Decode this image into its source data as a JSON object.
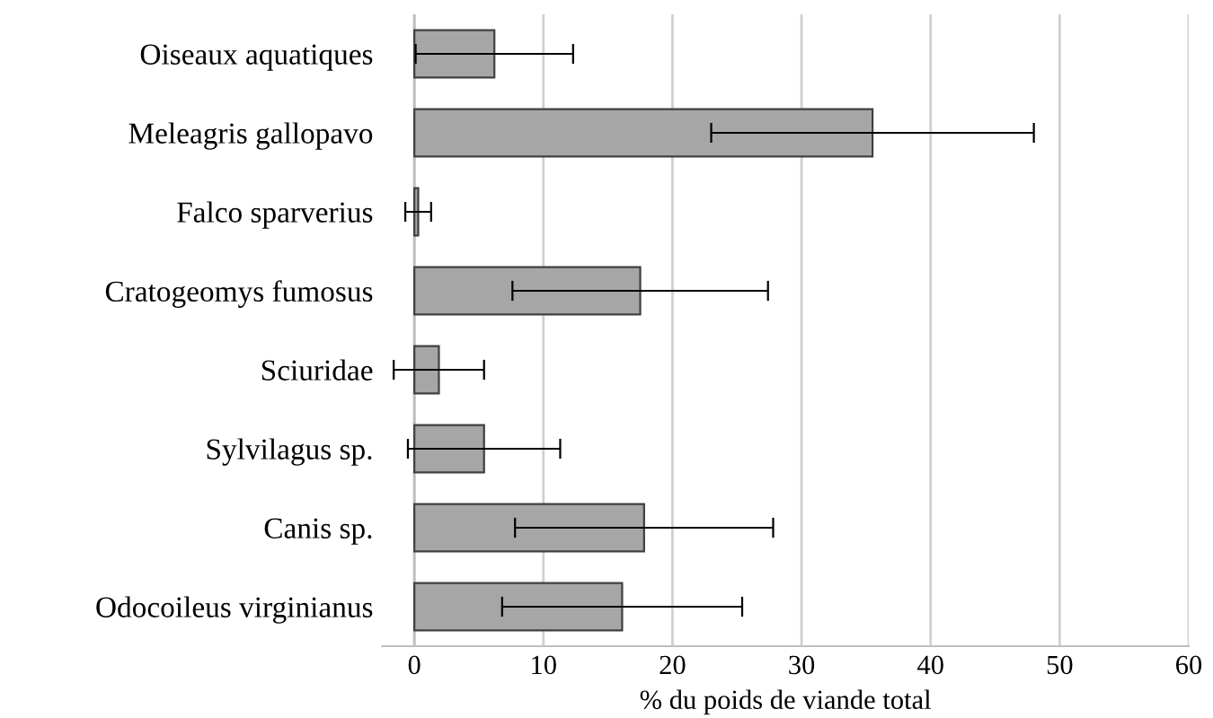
{
  "chart_data": {
    "type": "bar",
    "orientation": "horizontal",
    "xlabel": "% du poids de viande total",
    "categories": [
      "Oiseaux aquatiques",
      "Meleagris gallopavo",
      "Falco sparverius",
      "Cratogeomys fumosus",
      "Sciuridae",
      "Sylvilagus sp.",
      "Canis sp.",
      "Odocoileus virginianus"
    ],
    "values": [
      6.2,
      35.5,
      0.3,
      17.5,
      1.9,
      5.4,
      17.8,
      16.1
    ],
    "errors": [
      6.1,
      12.5,
      1,
      9.9,
      3.5,
      5.9,
      10,
      9.3
    ],
    "color": "#a6a6a6",
    "xlim": [
      -2.5,
      60
    ],
    "xticks": [
      0,
      10,
      20,
      30,
      40,
      50,
      60
    ],
    "grid": "x"
  }
}
